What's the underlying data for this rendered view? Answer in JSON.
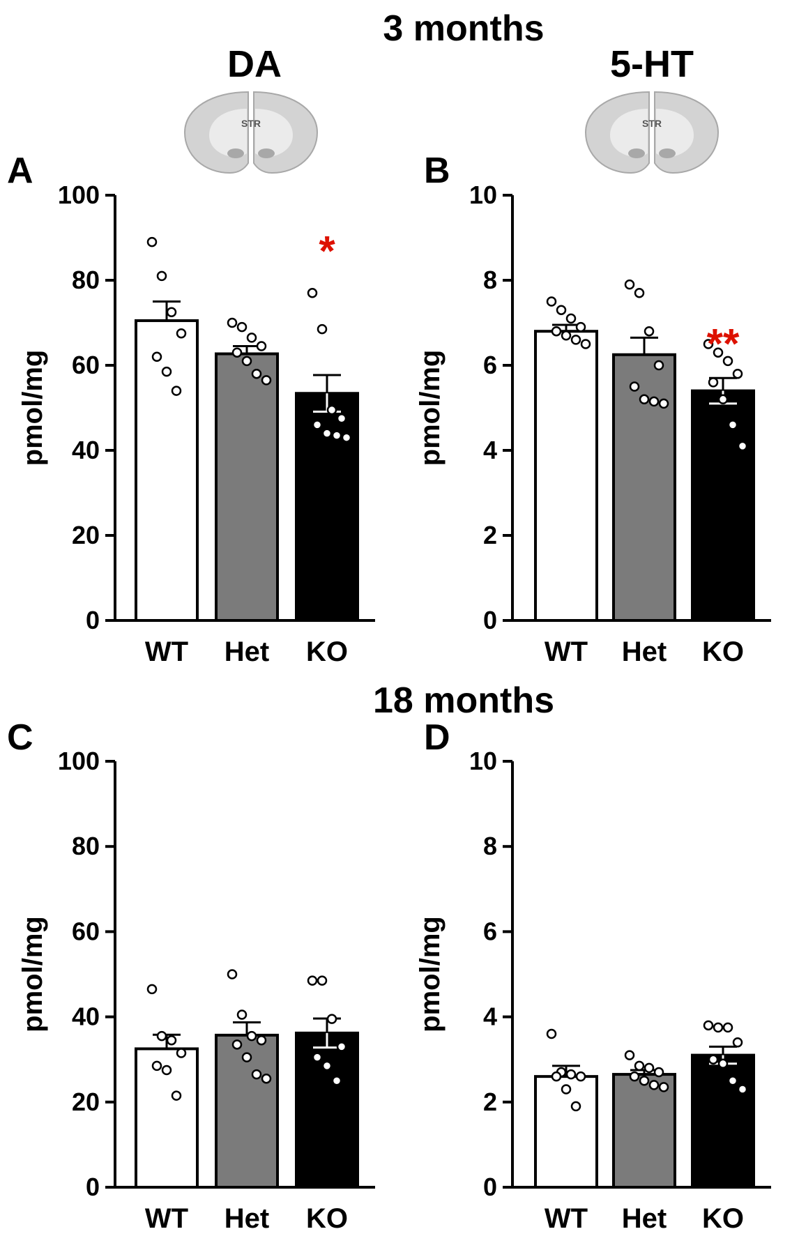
{
  "figure": {
    "title_top": "3 months",
    "title_bottom": "18 months",
    "col_titles": [
      "DA",
      "5-HT"
    ],
    "brain_label": "STR"
  },
  "colors": {
    "WT": "#ffffff",
    "Het": "#7b7b7b",
    "KO": "#000000",
    "significance": "#dd1100"
  },
  "chart_data": [
    {
      "panel": "A",
      "type": "bar",
      "title": "DA",
      "categories": [
        "WT",
        "Het",
        "KO"
      ],
      "values": [
        70.5,
        62.7,
        53.4
      ],
      "sem": [
        4.5,
        1.8,
        4.3
      ],
      "points": [
        [
          89,
          81,
          72.5,
          67.5,
          62,
          58.5,
          54
        ],
        [
          70,
          69,
          66.5,
          64.5,
          63,
          61,
          58,
          56.5
        ],
        [
          77,
          68.5,
          49.5,
          47.5,
          46,
          44,
          43.5,
          43
        ]
      ],
      "significance": [
        "",
        "",
        "*"
      ],
      "ylabel": "pmol/mg",
      "ylim": [
        0,
        100
      ],
      "yticks": [
        0,
        20,
        40,
        60,
        80,
        100
      ],
      "ytick_labels": [
        "0",
        "20",
        "40",
        "60",
        "80",
        "100"
      ]
    },
    {
      "panel": "B",
      "type": "bar",
      "title": "5-HT",
      "categories": [
        "WT",
        "Het",
        "KO"
      ],
      "values": [
        6.8,
        6.25,
        5.4
      ],
      "sem": [
        0.15,
        0.4,
        0.3
      ],
      "points": [
        [
          7.5,
          7.3,
          7.1,
          6.9,
          6.8,
          6.7,
          6.6,
          6.5
        ],
        [
          7.9,
          7.7,
          6.8,
          6.0,
          5.5,
          5.2,
          5.15,
          5.1
        ],
        [
          6.5,
          6.3,
          6.1,
          5.8,
          5.6,
          5.2,
          4.6,
          4.1
        ]
      ],
      "significance": [
        "",
        "",
        "**"
      ],
      "ylabel": "pmol/mg",
      "ylim": [
        0,
        10
      ],
      "yticks": [
        0,
        2,
        4,
        6,
        8,
        10
      ],
      "ytick_labels": [
        "0",
        "2",
        "4",
        "6",
        "8",
        "10"
      ]
    },
    {
      "panel": "C",
      "type": "bar",
      "title": "",
      "categories": [
        "WT",
        "Het",
        "KO"
      ],
      "values": [
        32.5,
        35.7,
        36.2
      ],
      "sem": [
        3.3,
        3.0,
        3.4
      ],
      "points": [
        [
          46.5,
          35.5,
          34.5,
          31.5,
          28.5,
          27.5,
          21.5
        ],
        [
          50,
          40.5,
          35.5,
          34.5,
          33.5,
          30.5,
          26.5,
          25.5
        ],
        [
          48.5,
          48.5,
          39.5,
          33,
          30.5,
          28.5,
          25
        ]
      ],
      "significance": [
        "",
        "",
        ""
      ],
      "ylabel": "pmol/mg",
      "ylim": [
        0,
        100
      ],
      "yticks": [
        0,
        20,
        40,
        60,
        80,
        100
      ],
      "ytick_labels": [
        "0",
        "20",
        "40",
        "60",
        "80",
        "100"
      ]
    },
    {
      "panel": "D",
      "type": "bar",
      "title": "",
      "categories": [
        "WT",
        "Het",
        "KO"
      ],
      "values": [
        2.6,
        2.65,
        3.1
      ],
      "sem": [
        0.25,
        0.1,
        0.2
      ],
      "points": [
        [
          3.6,
          2.7,
          2.65,
          2.6,
          2.6,
          2.3,
          1.9
        ],
        [
          3.1,
          2.85,
          2.8,
          2.7,
          2.6,
          2.5,
          2.4,
          2.35
        ],
        [
          3.8,
          3.75,
          3.75,
          3.4,
          3.0,
          2.9,
          2.5,
          2.3
        ]
      ],
      "significance": [
        "",
        "",
        ""
      ],
      "ylabel": "pmol/mg",
      "ylim": [
        0,
        10
      ],
      "yticks": [
        0,
        2,
        4,
        6,
        8,
        10
      ],
      "ytick_labels": [
        "0",
        "2",
        "4",
        "6",
        "8",
        "10"
      ]
    }
  ]
}
